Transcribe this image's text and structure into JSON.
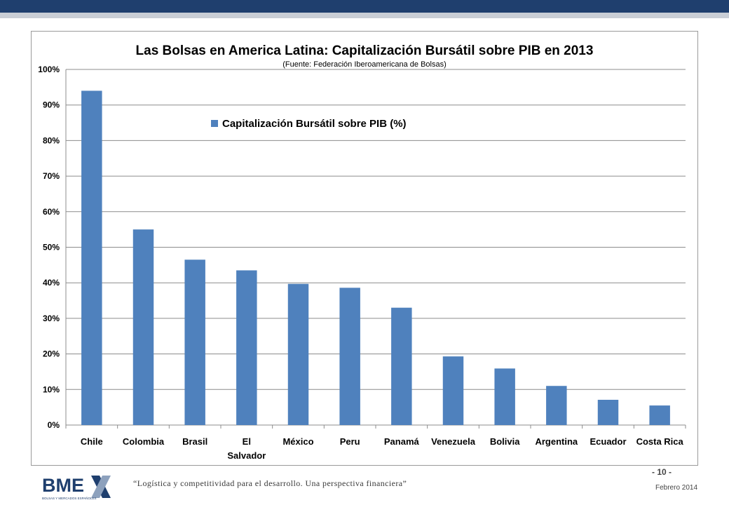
{
  "chart_data": {
    "type": "bar",
    "title": "Las Bolsas en America Latina: Capitalización Bursátil sobre PIB en 2013",
    "subtitle": "(Fuente: Federación Iberoamericana de Bolsas)",
    "categories": [
      "Chile",
      "Colombia",
      "Brasil",
      [
        "El",
        "Salvador"
      ],
      "México",
      "Peru",
      "Panamá",
      "Venezuela",
      "Bolivia",
      "Argentina",
      "Ecuador",
      "Costa Rica"
    ],
    "series": [
      {
        "name": "Capitalización Bursátil sobre PIB (%)",
        "values": [
          94,
          55,
          46.5,
          43.5,
          39.7,
          38.6,
          33,
          19.3,
          15.9,
          11,
          7.1,
          5.5
        ]
      }
    ],
    "ylim": [
      0,
      100
    ],
    "yticks": [
      "0%",
      "10%",
      "20%",
      "30%",
      "40%",
      "50%",
      "60%",
      "70%",
      "80%",
      "90%",
      "100%"
    ],
    "xlabel": "",
    "ylabel": "",
    "grid": true,
    "legend_position": "top-center",
    "bar_color": "#4f81bd"
  },
  "footer": {
    "quote": "“Logística y competitividad para el desarrollo. Una perspectiva financiera”",
    "page": "- 10 -",
    "date": "Febrero 2014",
    "logo_text": "BME",
    "logo_subtext": "BOLSAS Y MERCADOS ESPAÑOLES"
  },
  "colors": {
    "header_bar": "#1f3f6e",
    "header_strip": "#c9ced6",
    "logo_blue": "#1f3f6e"
  }
}
